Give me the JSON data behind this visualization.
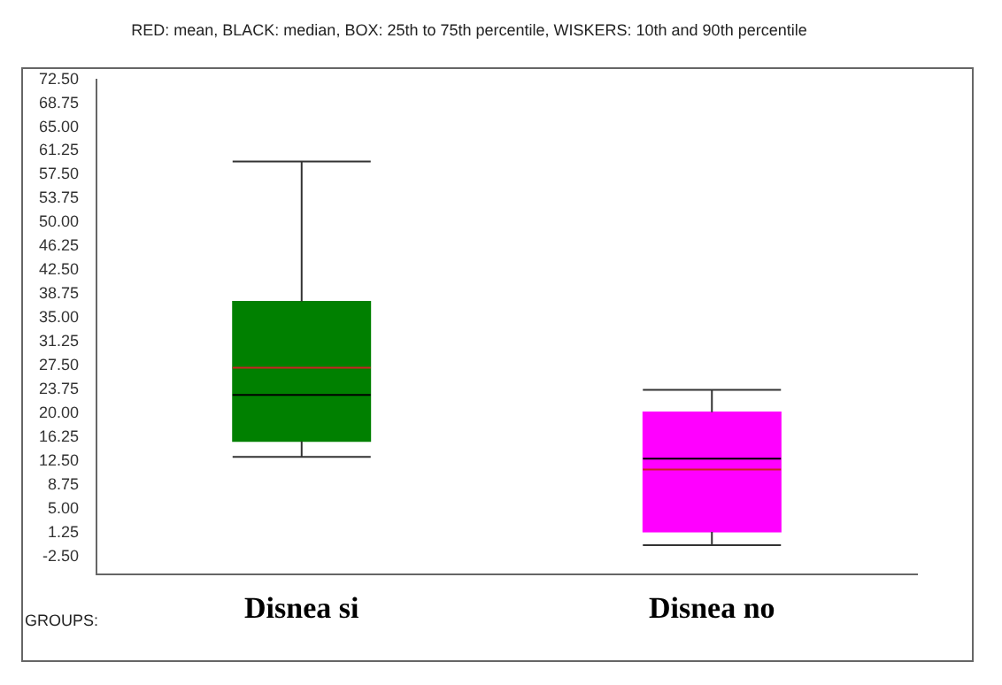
{
  "chart_data": {
    "type": "box",
    "title": "RED: mean, BLACK: median, BOX: 25th to 75th percentile, WISKERS: 10th and 90th percentile",
    "xlabel": "GROUPS:",
    "categories": [
      "Disnea si",
      "Disnea no"
    ],
    "colors": [
      "#008000",
      "#ff00ff"
    ],
    "boxes": [
      {
        "low": 13.2,
        "q1": 15.6,
        "median": 22.9,
        "q3": 37.6,
        "high": 59.6,
        "mean": 27.2
      },
      {
        "low": -0.7,
        "q1": 1.4,
        "median": 12.9,
        "q3": 20.2,
        "high": 23.7,
        "mean": 11.2
      }
    ],
    "ylim": [
      -5.3,
      72.5
    ],
    "yticks": [
      {
        "value": 72.5,
        "label": "72.50"
      },
      {
        "value": 68.75,
        "label": "68.75"
      },
      {
        "value": 65,
        "label": "65.00"
      },
      {
        "value": 61.25,
        "label": "61.25"
      },
      {
        "value": 57.5,
        "label": "57.50"
      },
      {
        "value": 53.75,
        "label": "53.75"
      },
      {
        "value": 50,
        "label": "50.00"
      },
      {
        "value": 46.25,
        "label": "46.25"
      },
      {
        "value": 42.5,
        "label": "42.50"
      },
      {
        "value": 38.75,
        "label": "38.75"
      },
      {
        "value": 35,
        "label": "35.00"
      },
      {
        "value": 31.25,
        "label": "31.25"
      },
      {
        "value": 27.5,
        "label": "27.50"
      },
      {
        "value": 23.75,
        "label": "23.75"
      },
      {
        "value": 20,
        "label": "20.00"
      },
      {
        "value": 16.25,
        "label": "16.25"
      },
      {
        "value": 12.5,
        "label": "12.50"
      },
      {
        "value": 8.75,
        "label": "8.75"
      },
      {
        "value": 5,
        "label": "5.00"
      },
      {
        "value": 1.25,
        "label": "1.25"
      },
      {
        "value": -2.5,
        "label": "-2.50"
      }
    ],
    "grid": false,
    "legend": false
  }
}
